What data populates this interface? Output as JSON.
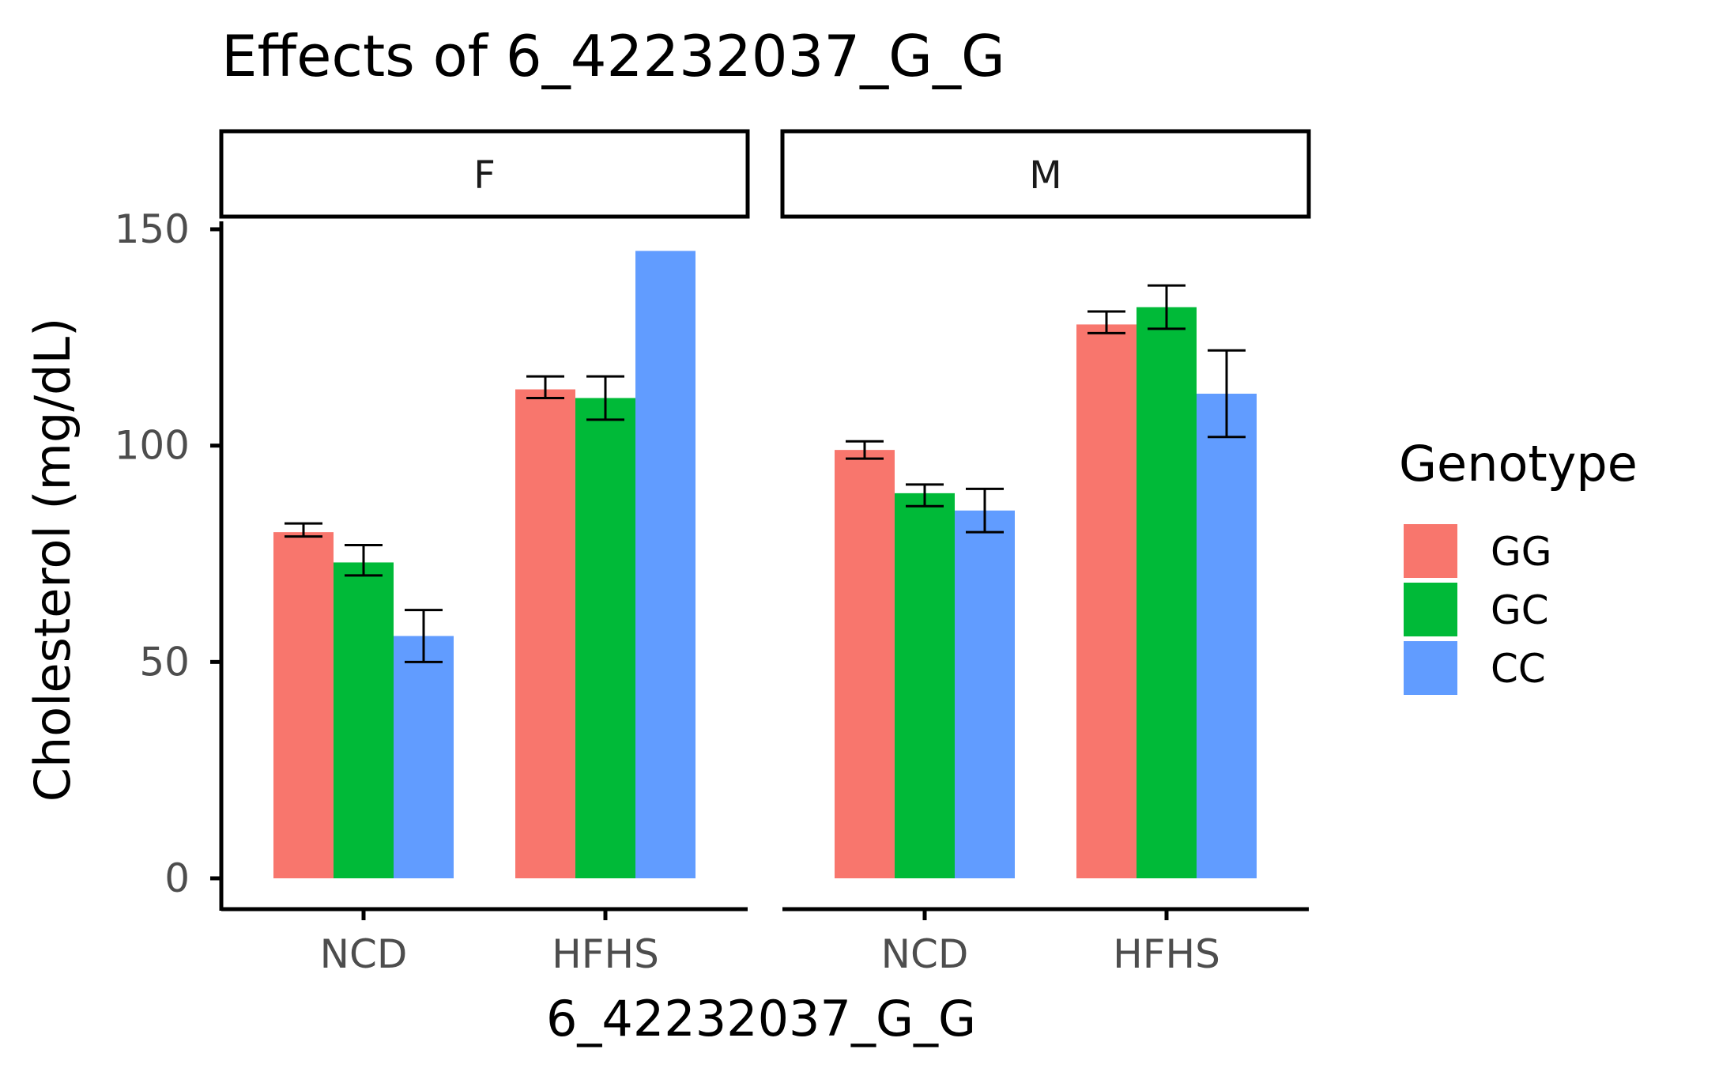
{
  "chart_data": {
    "type": "bar",
    "title": "Effects of  6_42232037_G_G",
    "xlabel": "6_42232037_G_G",
    "ylabel": "Cholesterol (mg/dL)",
    "ylim": [
      0,
      160
    ],
    "yticks": [
      0,
      50,
      100,
      150
    ],
    "categories": [
      "NCD",
      "HFHS"
    ],
    "facets": [
      "F",
      "M"
    ],
    "legend": {
      "title": "Genotype",
      "position": "right",
      "entries": [
        {
          "name": "GG",
          "color": "#F8766D"
        },
        {
          "name": "GC",
          "color": "#00BA38"
        },
        {
          "name": "CC",
          "color": "#619CFF"
        }
      ]
    },
    "panels": [
      {
        "facet": "F",
        "series": [
          {
            "name": "GG",
            "values": [
              80,
              113
            ],
            "err_low": [
              79,
              111
            ],
            "err_high": [
              82,
              116
            ]
          },
          {
            "name": "GC",
            "values": [
              73,
              111
            ],
            "err_low": [
              70,
              106
            ],
            "err_high": [
              77,
              116
            ]
          },
          {
            "name": "CC",
            "values": [
              56,
              145
            ],
            "err_low": [
              50,
              null
            ],
            "err_high": [
              62,
              null
            ]
          }
        ]
      },
      {
        "facet": "M",
        "series": [
          {
            "name": "GG",
            "values": [
              99,
              128
            ],
            "err_low": [
              97,
              126
            ],
            "err_high": [
              101,
              131
            ]
          },
          {
            "name": "GC",
            "values": [
              89,
              132
            ],
            "err_low": [
              86,
              127
            ],
            "err_high": [
              91,
              137
            ]
          },
          {
            "name": "CC",
            "values": [
              85,
              112
            ],
            "err_low": [
              80,
              102
            ],
            "err_high": [
              90,
              122
            ]
          }
        ]
      }
    ],
    "grid": false
  }
}
